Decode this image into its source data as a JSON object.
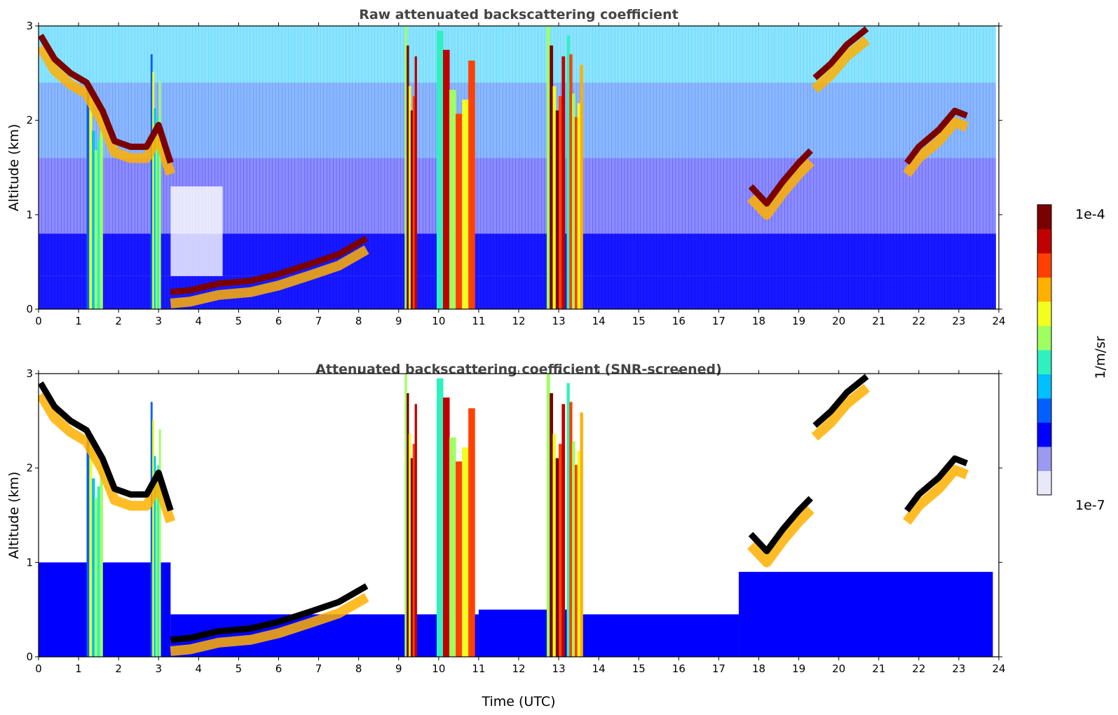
{
  "chart_data": [
    {
      "type": "heatmap",
      "title": "Raw attenuated backscattering coefficient",
      "xlabel": "",
      "ylabel": "Altitude (km)",
      "xlim": [
        0,
        24
      ],
      "ylim": [
        0,
        3
      ],
      "xticks": [
        "0",
        "1",
        "2",
        "3",
        "4",
        "5",
        "6",
        "7",
        "8",
        "9",
        "10",
        "11",
        "12",
        "13",
        "14",
        "15",
        "16",
        "17",
        "18",
        "19",
        "20",
        "21",
        "22",
        "23",
        "24"
      ],
      "yticks": [
        "0",
        "1",
        "2",
        "3"
      ],
      "screened": false,
      "cloud_layers": [
        {
          "name": "layer-a",
          "points": [
            [
              0.05,
              2.9
            ],
            [
              0.4,
              2.65
            ],
            [
              0.8,
              2.5
            ],
            [
              1.2,
              2.4
            ],
            [
              1.6,
              2.1
            ],
            [
              1.9,
              1.78
            ],
            [
              2.3,
              1.72
            ],
            [
              2.7,
              1.72
            ],
            [
              3.0,
              1.95
            ],
            [
              3.3,
              1.55
            ]
          ]
        },
        {
          "name": "layer-b",
          "points": [
            [
              3.3,
              0.18
            ],
            [
              3.8,
              0.2
            ],
            [
              4.5,
              0.27
            ],
            [
              5.3,
              0.3
            ],
            [
              6.0,
              0.37
            ],
            [
              6.8,
              0.48
            ],
            [
              7.5,
              0.58
            ],
            [
              8.2,
              0.75
            ]
          ]
        },
        {
          "name": "layer-c",
          "points": [
            [
              17.8,
              1.3
            ],
            [
              18.2,
              1.12
            ],
            [
              18.6,
              1.35
            ],
            [
              19.0,
              1.55
            ],
            [
              19.3,
              1.68
            ]
          ]
        },
        {
          "name": "layer-d",
          "points": [
            [
              19.4,
              2.45
            ],
            [
              19.8,
              2.6
            ],
            [
              20.2,
              2.8
            ],
            [
              20.7,
              2.97
            ]
          ]
        },
        {
          "name": "layer-e",
          "points": [
            [
              21.7,
              1.55
            ],
            [
              22.0,
              1.72
            ],
            [
              22.5,
              1.9
            ],
            [
              22.9,
              2.1
            ],
            [
              23.2,
              2.05
            ]
          ]
        }
      ],
      "columns": [
        {
          "start": 9.15,
          "end": 9.45,
          "top": 3.0,
          "intensity": 1.0
        },
        {
          "start": 9.95,
          "end": 10.9,
          "top": 2.95,
          "intensity": 0.85
        },
        {
          "start": 12.7,
          "end": 13.15,
          "top": 3.0,
          "intensity": 1.0
        },
        {
          "start": 13.2,
          "end": 13.6,
          "top": 2.9,
          "intensity": 0.8
        },
        {
          "start": 1.2,
          "end": 1.6,
          "top": 2.4,
          "intensity": 0.6
        },
        {
          "start": 2.8,
          "end": 3.05,
          "top": 2.7,
          "intensity": 0.6
        }
      ]
    },
    {
      "type": "heatmap",
      "title": "Attenuated backscattering coefficient (SNR-screened)",
      "xlabel": "Time (UTC)",
      "ylabel": "Altitude (km)",
      "xlim": [
        0,
        24
      ],
      "ylim": [
        0,
        3
      ],
      "xticks": [
        "0",
        "1",
        "2",
        "3",
        "4",
        "5",
        "6",
        "7",
        "8",
        "9",
        "10",
        "11",
        "12",
        "13",
        "14",
        "15",
        "16",
        "17",
        "18",
        "19",
        "20",
        "21",
        "22",
        "23",
        "24"
      ],
      "yticks": [
        "0",
        "1",
        "2",
        "3"
      ],
      "screened": true
    }
  ],
  "colorbar": {
    "label": "1/m/sr",
    "max_label": "1e-4",
    "min_label": "1e-7",
    "colors": [
      "#e8e8f8",
      "#9a9af0",
      "#0000ff",
      "#0060ff",
      "#00c0ff",
      "#30f0c0",
      "#a0ff60",
      "#f0ff20",
      "#ffb000",
      "#ff4000",
      "#c00000",
      "#7a0000"
    ]
  }
}
